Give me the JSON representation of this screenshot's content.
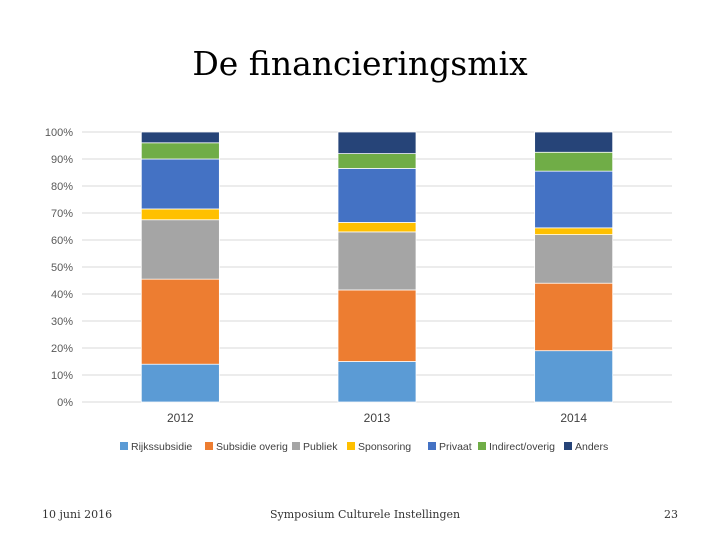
{
  "slide": {
    "title": "De financieringsmix",
    "footer_date": "10 juni 2016",
    "footer_center": "Symposium Culturele Instellingen",
    "page_number": "23"
  },
  "chart_data": {
    "type": "bar",
    "stacked": "percent",
    "title": "",
    "categories": [
      "2012",
      "2013",
      "2014"
    ],
    "yticks": [
      "0%",
      "10%",
      "20%",
      "30%",
      "40%",
      "50%",
      "60%",
      "70%",
      "80%",
      "90%",
      "100%"
    ],
    "ylim": [
      0,
      100
    ],
    "grid": true,
    "legend_position": "bottom",
    "series": [
      {
        "name": "Rijkssubsidie",
        "color": "#5b9bd5",
        "values": [
          14,
          15,
          19
        ]
      },
      {
        "name": "Subsidie overig",
        "color": "#ed7d31",
        "values": [
          31.5,
          26.5,
          25
        ]
      },
      {
        "name": "Publiek",
        "color": "#a5a5a5",
        "values": [
          22,
          21.5,
          18
        ]
      },
      {
        "name": "Sponsoring",
        "color": "#ffc000",
        "values": [
          4,
          3.5,
          2.5
        ]
      },
      {
        "name": "Privaat",
        "color": "#4472c4",
        "values": [
          18.5,
          20,
          21
        ]
      },
      {
        "name": "Indirect/overig",
        "color": "#70ad47",
        "values": [
          6,
          5.5,
          7
        ]
      },
      {
        "name": "Anders",
        "color": "#264478",
        "values": [
          4,
          8,
          7.5
        ]
      }
    ]
  }
}
